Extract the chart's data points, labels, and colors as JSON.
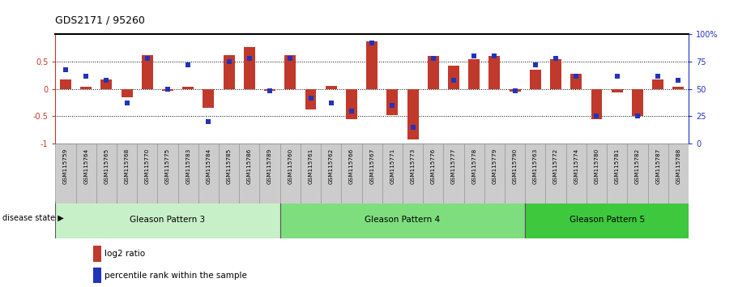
{
  "title": "GDS2171 / 95260",
  "samples": [
    "GSM115759",
    "GSM115764",
    "GSM115765",
    "GSM115768",
    "GSM115770",
    "GSM115775",
    "GSM115783",
    "GSM115784",
    "GSM115785",
    "GSM115786",
    "GSM115789",
    "GSM115760",
    "GSM115761",
    "GSM115762",
    "GSM115766",
    "GSM115767",
    "GSM115771",
    "GSM115773",
    "GSM115776",
    "GSM115777",
    "GSM115778",
    "GSM115779",
    "GSM115790",
    "GSM115763",
    "GSM115772",
    "GSM115774",
    "GSM115780",
    "GSM115781",
    "GSM115782",
    "GSM115787",
    "GSM115788"
  ],
  "log2_ratio": [
    0.18,
    0.04,
    0.18,
    -0.15,
    0.62,
    -0.04,
    0.04,
    -0.35,
    0.62,
    0.77,
    -0.04,
    0.62,
    -0.38,
    0.06,
    -0.55,
    0.88,
    -0.48,
    -0.92,
    0.6,
    0.42,
    0.55,
    0.6,
    -0.05,
    0.35,
    0.55,
    0.28,
    -0.55,
    -0.06,
    -0.5,
    0.18,
    0.04
  ],
  "percentile": [
    68,
    62,
    58,
    37,
    78,
    50,
    72,
    20,
    75,
    78,
    48,
    78,
    42,
    37,
    30,
    92,
    35,
    15,
    78,
    58,
    80,
    80,
    48,
    72,
    78,
    62,
    25,
    62,
    25,
    62,
    58
  ],
  "groups": [
    {
      "label": "Gleason Pattern 3",
      "start": 0,
      "end": 11
    },
    {
      "label": "Gleason Pattern 4",
      "start": 11,
      "end": 23
    },
    {
      "label": "Gleason Pattern 5",
      "start": 23,
      "end": 31
    }
  ],
  "group_colors": [
    "#C8F0C8",
    "#7EDE7E",
    "#3EC83E"
  ],
  "bar_color": "#C0392B",
  "dot_color": "#2233BB",
  "ylim": [
    -1.0,
    1.0
  ],
  "yticks_left": [
    -1.0,
    -0.5,
    0.0,
    0.5
  ],
  "ytick_labels_left": [
    "-1",
    "-0.5",
    "0",
    "0.5"
  ],
  "yticks_right_pct": [
    0,
    25,
    50,
    75,
    100
  ],
  "ytick_labels_right": [
    "0",
    "25",
    "50",
    "75",
    "100%"
  ],
  "legend_labels": [
    "log2 ratio",
    "percentile rank within the sample"
  ],
  "disease_state_label": "disease state"
}
